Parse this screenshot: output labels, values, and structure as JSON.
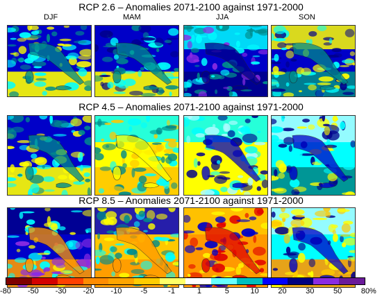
{
  "rows": [
    {
      "title": "RCP 2.6 – Anomalies 2071-2100 against 1971-2000"
    },
    {
      "title": "RCP 4.5 – Anomalies 2071-2100 against 1971-2000"
    },
    {
      "title": "RCP 8.5 – Anomalies 2071-2100 against 1971-2000"
    }
  ],
  "seasons": [
    "DJF",
    "MAM",
    "JJA",
    "SON"
  ],
  "colorbar": {
    "ticks": [
      "-80",
      "-50",
      "-30",
      "-20",
      "-10",
      "-5",
      "-1",
      "1",
      "5",
      "10",
      "20",
      "30",
      "50",
      "80"
    ],
    "unit": "%",
    "colors": [
      "#7f0000",
      "#d40000",
      "#ff4000",
      "#ff8c00",
      "#ffa500",
      "#ffcc00",
      "#ffff66",
      "#ffffff",
      "#66ffff",
      "#00bfbf",
      "#0000ff",
      "#000080",
      "#8a2be2",
      "#6a1b9a"
    ]
  },
  "map_colors": {
    "sea_wet": "#0000c8",
    "sea_deep": "#00008b",
    "teal": "#008b8b",
    "cyan": "#00ffff",
    "light_cyan": "#aefaff",
    "yellow": "#ffff00",
    "orange_yellow": "#ffc800",
    "orange": "#ff9900",
    "red": "#e00000",
    "purple": "#8a2be2"
  }
}
